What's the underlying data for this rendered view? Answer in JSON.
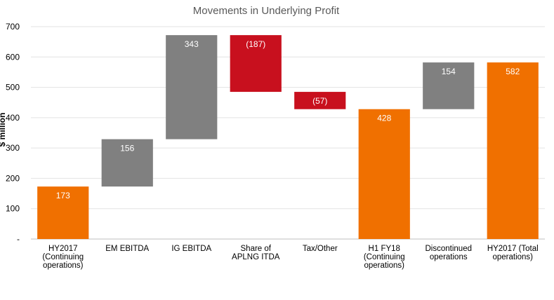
{
  "chart_data": {
    "type": "bar",
    "subtype": "waterfall",
    "title": "Movements in Underlying Profit",
    "ylabel": "$ million",
    "ylim": [
      0,
      700
    ],
    "yticks": [
      "-",
      "100",
      "200",
      "300",
      "400",
      "500",
      "600",
      "700"
    ],
    "grid": true,
    "colors": {
      "total": "#f07000",
      "increase": "#808080",
      "decrease": "#c8101e"
    },
    "bars": [
      {
        "category": [
          "HY2017",
          "(Continuing",
          "operations)"
        ],
        "kind": "total",
        "start": 0,
        "end": 173,
        "label": "173"
      },
      {
        "category": [
          "EM EBITDA"
        ],
        "kind": "increase",
        "start": 173,
        "end": 329,
        "label": "156"
      },
      {
        "category": [
          "IG EBITDA"
        ],
        "kind": "increase",
        "start": 329,
        "end": 672,
        "label": "343"
      },
      {
        "category": [
          "Share of",
          "APLNG ITDA"
        ],
        "kind": "decrease",
        "start": 672,
        "end": 485,
        "label": "(187)"
      },
      {
        "category": [
          "Tax/Other"
        ],
        "kind": "decrease",
        "start": 485,
        "end": 428,
        "label": "(57)"
      },
      {
        "category": [
          "H1 FY18",
          "(Continuing",
          "operations)"
        ],
        "kind": "total",
        "start": 0,
        "end": 428,
        "label": "428"
      },
      {
        "category": [
          "Discontinued",
          "operations"
        ],
        "kind": "increase",
        "start": 428,
        "end": 582,
        "label": "154"
      },
      {
        "category": [
          "HY2017 (Total",
          "operations)"
        ],
        "kind": "total",
        "start": 0,
        "end": 582,
        "label": "582"
      }
    ]
  }
}
